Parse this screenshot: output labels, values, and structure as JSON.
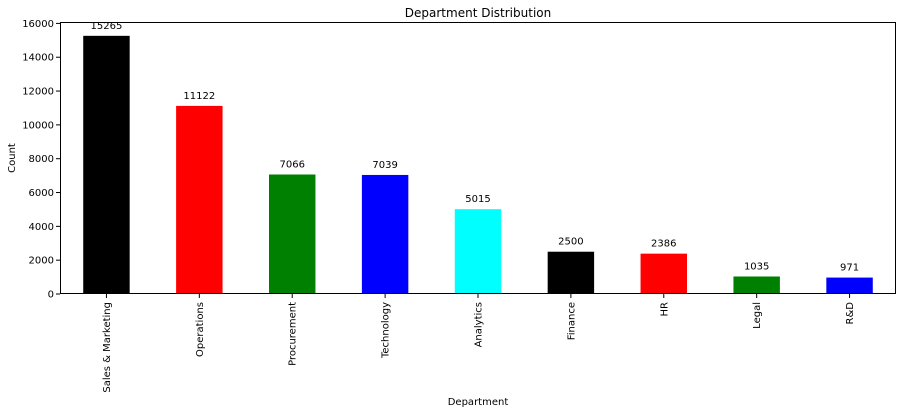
{
  "chart_data": {
    "type": "bar",
    "title": "Department Distribution",
    "xlabel": "Department",
    "ylabel": "Count",
    "categories": [
      "Sales & Marketing",
      "Operations",
      "Procurement",
      "Technology",
      "Analytics",
      "Finance",
      "HR",
      "Legal",
      "R&D"
    ],
    "values": [
      15265,
      11122,
      7066,
      7039,
      5015,
      2500,
      2386,
      1035,
      971
    ],
    "data_labels": [
      "15265",
      "11122",
      "7066",
      "7039",
      "5015",
      "2500",
      "2386",
      "1035",
      "971"
    ],
    "colors": [
      "#000000",
      "#ff0000",
      "#008000",
      "#0000ff",
      "#00ffff",
      "#000000",
      "#ff0000",
      "#008000",
      "#0000ff"
    ],
    "ylim": [
      0,
      16083
    ],
    "yticks": [
      0,
      2000,
      4000,
      6000,
      8000,
      10000,
      12000,
      14000,
      16000
    ],
    "ytick_labels": [
      "0",
      "2000",
      "4000",
      "6000",
      "8000",
      "10000",
      "12000",
      "14000",
      "16000"
    ],
    "grid": false,
    "legend": "none"
  }
}
